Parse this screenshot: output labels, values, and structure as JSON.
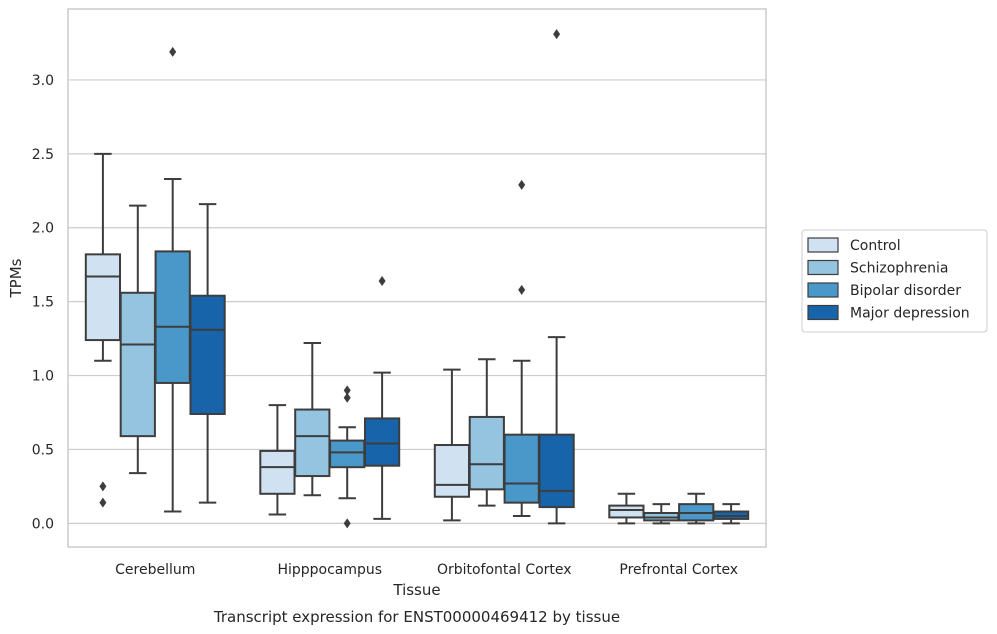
{
  "chart_data": {
    "type": "boxplot",
    "title": "Transcript expression for ENST00000469412 by tissue",
    "xlabel": "Tissue",
    "ylabel": "TPMs",
    "ylim": [
      -0.16,
      3.48
    ],
    "yticks": [
      "0.0",
      "0.5",
      "1.0",
      "1.5",
      "2.0",
      "2.5",
      "3.0"
    ],
    "grid": true,
    "legend_position": "right",
    "categories": [
      "Cerebellum",
      "Hipppocampus",
      "Orbitofontal Cortex",
      "Prefrontal Cortex"
    ],
    "series": [
      {
        "name": "Control",
        "color": "#d0e1f2",
        "boxes": [
          {
            "whisker_low": 1.1,
            "q1": 1.24,
            "median": 1.67,
            "q3": 1.82,
            "whisker_high": 2.5,
            "outliers": [
              0.25,
              0.14
            ]
          },
          {
            "whisker_low": 0.06,
            "q1": 0.2,
            "median": 0.38,
            "q3": 0.49,
            "whisker_high": 0.8,
            "outliers": []
          },
          {
            "whisker_low": 0.02,
            "q1": 0.18,
            "median": 0.26,
            "q3": 0.53,
            "whisker_high": 1.04,
            "outliers": []
          },
          {
            "whisker_low": 0.0,
            "q1": 0.04,
            "median": 0.09,
            "q3": 0.12,
            "whisker_high": 0.2,
            "outliers": []
          }
        ]
      },
      {
        "name": "Schizophrenia",
        "color": "#94c4df",
        "boxes": [
          {
            "whisker_low": 0.34,
            "q1": 0.59,
            "median": 1.21,
            "q3": 1.56,
            "whisker_high": 2.15,
            "outliers": []
          },
          {
            "whisker_low": 0.19,
            "q1": 0.32,
            "median": 0.59,
            "q3": 0.77,
            "whisker_high": 1.22,
            "outliers": []
          },
          {
            "whisker_low": 0.12,
            "q1": 0.23,
            "median": 0.4,
            "q3": 0.72,
            "whisker_high": 1.11,
            "outliers": []
          },
          {
            "whisker_low": 0.0,
            "q1": 0.02,
            "median": 0.04,
            "q3": 0.07,
            "whisker_high": 0.13,
            "outliers": []
          }
        ]
      },
      {
        "name": "Bipolar disorder",
        "color": "#4a98c9",
        "boxes": [
          {
            "whisker_low": 0.08,
            "q1": 0.95,
            "median": 1.33,
            "q3": 1.84,
            "whisker_high": 2.33,
            "outliers": [
              3.19
            ]
          },
          {
            "whisker_low": 0.17,
            "q1": 0.38,
            "median": 0.48,
            "q3": 0.56,
            "whisker_high": 0.65,
            "outliers": [
              0.9,
              0.85,
              0.0
            ]
          },
          {
            "whisker_low": 0.05,
            "q1": 0.14,
            "median": 0.27,
            "q3": 0.6,
            "whisker_high": 1.1,
            "outliers": [
              1.58,
              2.29
            ]
          },
          {
            "whisker_low": 0.0,
            "q1": 0.02,
            "median": 0.07,
            "q3": 0.13,
            "whisker_high": 0.2,
            "outliers": []
          }
        ]
      },
      {
        "name": "Major depression",
        "color": "#1764ab",
        "boxes": [
          {
            "whisker_low": 0.14,
            "q1": 0.74,
            "median": 1.31,
            "q3": 1.54,
            "whisker_high": 2.16,
            "outliers": []
          },
          {
            "whisker_low": 0.03,
            "q1": 0.39,
            "median": 0.54,
            "q3": 0.71,
            "whisker_high": 1.02,
            "outliers": [
              1.64
            ]
          },
          {
            "whisker_low": 0.0,
            "q1": 0.11,
            "median": 0.22,
            "q3": 0.6,
            "whisker_high": 1.26,
            "outliers": [
              3.31
            ]
          },
          {
            "whisker_low": 0.0,
            "q1": 0.03,
            "median": 0.05,
            "q3": 0.08,
            "whisker_high": 0.13,
            "outliers": []
          }
        ]
      }
    ]
  }
}
